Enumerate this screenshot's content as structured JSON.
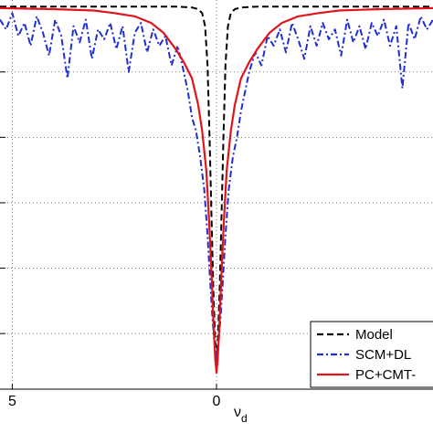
{
  "chart_data": {
    "type": "line",
    "title": "",
    "xlabel": "ν",
    "xlabel_sub": "d",
    "ylabel": "",
    "xlim": [
      -5.3,
      5.3
    ],
    "ylim": [
      -1.17,
      0.02
    ],
    "x_ticks": [
      {
        "value": -5,
        "label": "5"
      },
      {
        "value": 0,
        "label": "0"
      }
    ],
    "y_grid_values": [
      -0.2,
      -0.4,
      -0.6,
      -0.8,
      -1.0
    ],
    "grid": true,
    "legend_position": "bottom-right",
    "legend_entries": [
      "Model",
      "SCM+DL",
      "PC+CMT-"
    ],
    "series": [
      {
        "name": "Model",
        "color": "#000000",
        "style": "dashed",
        "x": [
          -5.3,
          -1.0,
          -0.6,
          -0.45,
          -0.35,
          -0.28,
          -0.22,
          -0.17,
          -0.12,
          -0.08,
          -0.04,
          0,
          0.04,
          0.08,
          0.12,
          0.17,
          0.22,
          0.28,
          0.35,
          0.45,
          0.6,
          1.0,
          5.3
        ],
        "y": [
          0.0,
          0.0,
          -0.003,
          -0.008,
          -0.02,
          -0.06,
          -0.18,
          -0.4,
          -0.65,
          -0.85,
          -1.0,
          -1.1,
          -1.0,
          -0.85,
          -0.65,
          -0.4,
          -0.18,
          -0.06,
          -0.02,
          -0.008,
          -0.003,
          0.0,
          0.0
        ]
      },
      {
        "name": "SCM+DL",
        "color": "#1f2fd0",
        "style": "dashdot",
        "x": [
          -5.3,
          -5.15,
          -5.0,
          -4.85,
          -4.7,
          -4.55,
          -4.4,
          -4.25,
          -4.1,
          -3.95,
          -3.8,
          -3.65,
          -3.5,
          -3.35,
          -3.2,
          -3.05,
          -2.9,
          -2.75,
          -2.6,
          -2.45,
          -2.3,
          -2.15,
          -2.0,
          -1.85,
          -1.7,
          -1.55,
          -1.4,
          -1.25,
          -1.1,
          -0.95,
          -0.8,
          -0.7,
          -0.6,
          -0.5,
          -0.4,
          -0.3,
          -0.22,
          -0.15,
          -0.1,
          -0.05,
          0,
          0.05,
          0.1,
          0.15,
          0.22,
          0.3,
          0.4,
          0.5,
          0.6,
          0.7,
          0.8,
          0.95,
          1.1,
          1.25,
          1.4,
          1.55,
          1.7,
          1.85,
          2.0,
          2.15,
          2.3,
          2.45,
          2.6,
          2.75,
          2.9,
          3.05,
          3.2,
          3.35,
          3.5,
          3.65,
          3.8,
          3.95,
          4.1,
          4.25,
          4.4,
          4.55,
          4.7,
          4.85,
          5.0,
          5.15,
          5.3
        ],
        "y": [
          -0.04,
          -0.07,
          -0.02,
          -0.09,
          -0.05,
          -0.12,
          -0.03,
          -0.08,
          -0.15,
          -0.04,
          -0.09,
          -0.22,
          -0.06,
          -0.11,
          -0.04,
          -0.16,
          -0.07,
          -0.1,
          -0.05,
          -0.13,
          -0.06,
          -0.2,
          -0.08,
          -0.05,
          -0.14,
          -0.07,
          -0.12,
          -0.09,
          -0.18,
          -0.12,
          -0.2,
          -0.26,
          -0.34,
          -0.38,
          -0.46,
          -0.56,
          -0.7,
          -0.85,
          -0.95,
          -1.03,
          -1.08,
          -1.03,
          -0.95,
          -0.85,
          -0.7,
          -0.56,
          -0.46,
          -0.4,
          -0.32,
          -0.26,
          -0.2,
          -0.14,
          -0.18,
          -0.09,
          -0.12,
          -0.07,
          -0.14,
          -0.05,
          -0.1,
          -0.16,
          -0.06,
          -0.12,
          -0.05,
          -0.1,
          -0.07,
          -0.15,
          -0.04,
          -0.11,
          -0.06,
          -0.13,
          -0.05,
          -0.09,
          -0.04,
          -0.12,
          -0.06,
          -0.25,
          -0.05,
          -0.1,
          -0.03,
          -0.07,
          -0.04
        ]
      },
      {
        "name": "PC+CMT-",
        "color": "#e0151b",
        "style": "solid",
        "x": [
          -5.3,
          -4.0,
          -3.0,
          -2.5,
          -2.0,
          -1.6,
          -1.3,
          -1.0,
          -0.8,
          -0.6,
          -0.45,
          -0.35,
          -0.25,
          -0.18,
          -0.12,
          -0.07,
          -0.03,
          0,
          0.03,
          0.07,
          0.12,
          0.18,
          0.25,
          0.35,
          0.45,
          0.6,
          0.8,
          1.0,
          1.3,
          1.6,
          2.0,
          2.5,
          3.0,
          4.0,
          5.3
        ],
        "y": [
          -0.005,
          -0.008,
          -0.012,
          -0.02,
          -0.03,
          -0.05,
          -0.08,
          -0.13,
          -0.17,
          -0.22,
          -0.3,
          -0.38,
          -0.5,
          -0.66,
          -0.82,
          -0.98,
          -1.08,
          -1.12,
          -1.08,
          -0.98,
          -0.82,
          -0.66,
          -0.5,
          -0.38,
          -0.3,
          -0.22,
          -0.17,
          -0.13,
          -0.08,
          -0.05,
          -0.03,
          -0.02,
          -0.012,
          -0.008,
          -0.005
        ]
      }
    ]
  }
}
